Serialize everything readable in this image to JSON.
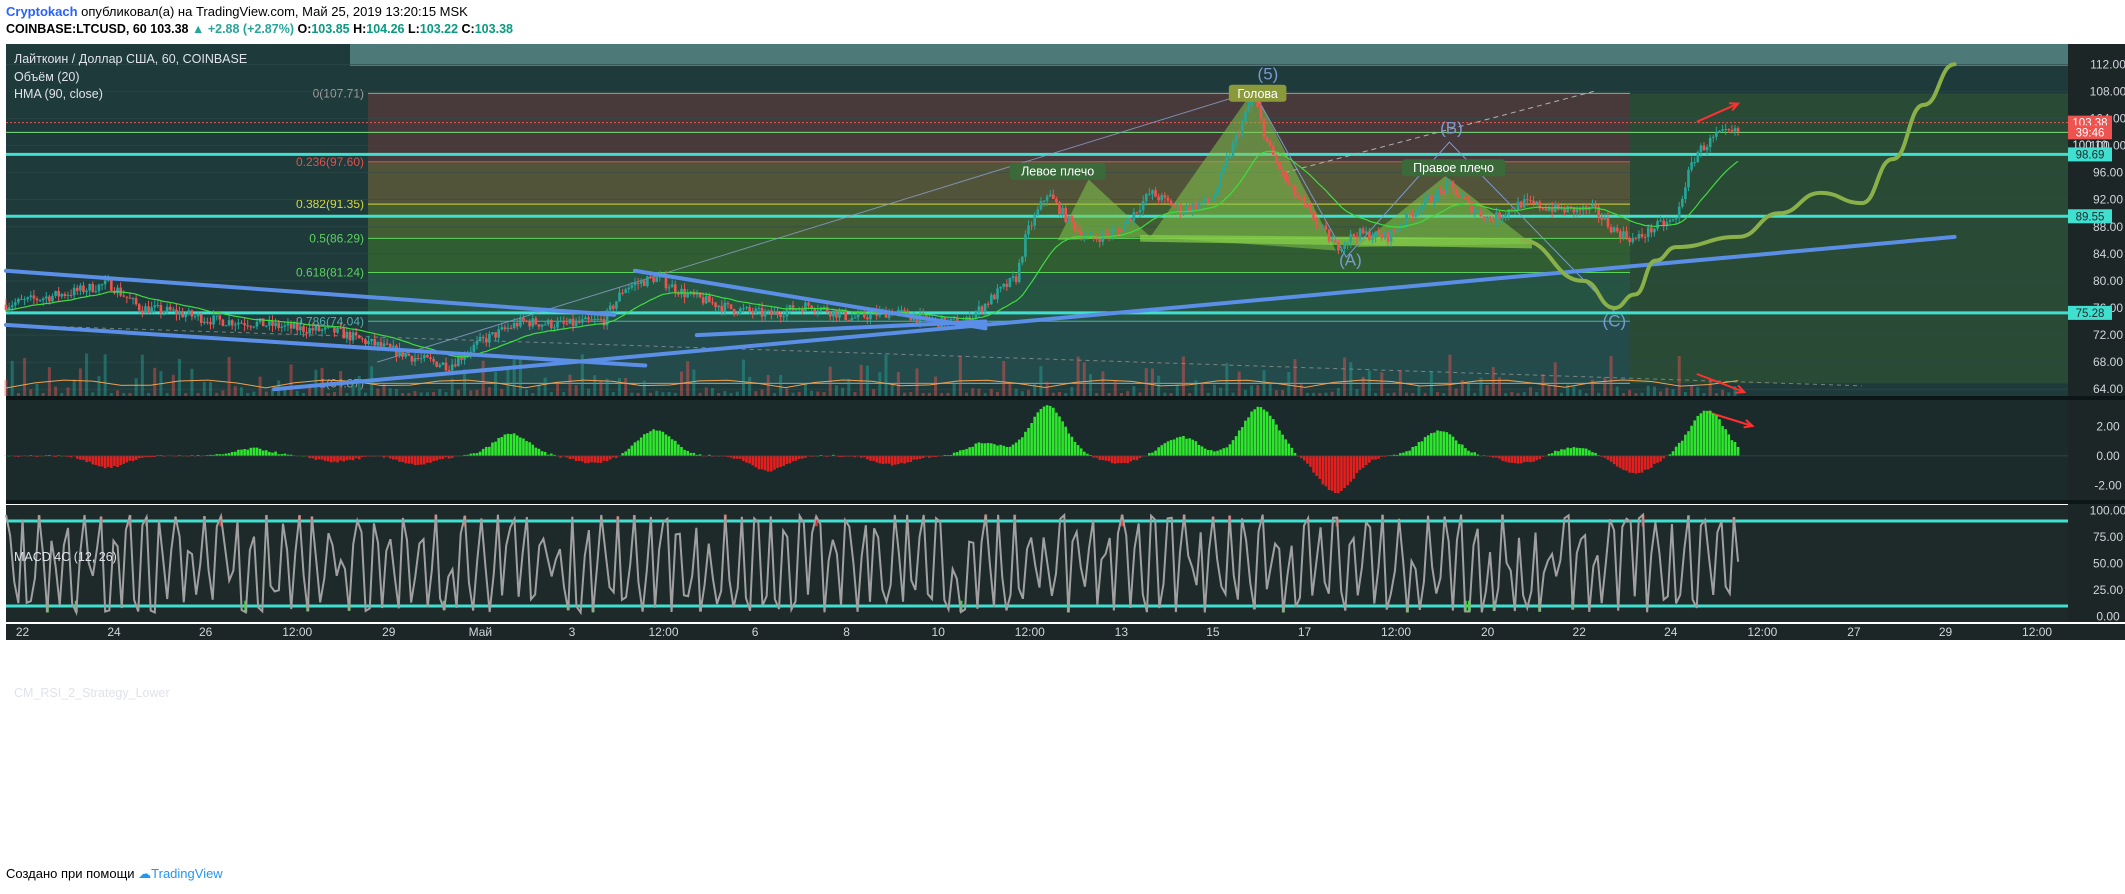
{
  "header": {
    "author": "Cryptokach",
    "published": "опубликовал(а) на TradingView.com, Май 25, 2019 13:20:15 MSK",
    "symbol": "COINBASE:LTCUSD, 60",
    "price": "103.38",
    "change": "▲ +2.88 (+2.87%)",
    "o_label": "O:",
    "o_val": "103.85",
    "h_label": "H:",
    "h_val": "104.26",
    "l_label": "L:",
    "l_val": "103.22",
    "c_label": "C:",
    "c_val": "103.38"
  },
  "legend": {
    "title": "Лайткоин / Доллар США, 60, COINBASE",
    "vol": "Объём (20)",
    "hma": "HMA (90, close)"
  },
  "footer": {
    "created": "Создано при помощи",
    "brand": "TradingView"
  },
  "colors": {
    "bg": "#1e3a3a",
    "fib_green": "#4caf50",
    "cyan": "#40e0d0",
    "trend_blue": "#5b8ee6",
    "olive": "#8ab04a",
    "up": "#26a69a",
    "down": "#ef5350",
    "macd_up": "#2ee62e",
    "macd_down": "#e61e1e",
    "rsi": "#a0a0a0"
  },
  "chart_data": [
    {
      "type": "candlestick",
      "title": "Лайткоин / Доллар США, 60, COINBASE",
      "x_ticks": [
        "22",
        "24",
        "26",
        "12:00",
        "29",
        "Май",
        "3",
        "12:00",
        "6",
        "8",
        "10",
        "12:00",
        "13",
        "15",
        "17",
        "12:00",
        "20",
        "22",
        "24",
        "12:00",
        "27",
        "29",
        "12:00"
      ],
      "y_ticks": [
        64,
        68,
        72,
        76,
        80,
        84,
        88,
        92,
        96,
        100,
        104,
        108,
        112
      ],
      "ylim": [
        63,
        115
      ],
      "price_labels": [
        {
          "value": 103.38,
          "text": "103.38",
          "color": "#ef5350"
        },
        {
          "value": 101.95,
          "text": "39:46",
          "color": "#ef5350"
        },
        {
          "value": 100.1,
          "text": "100.10",
          "color": "#e0e3eb"
        },
        {
          "value": 98.69,
          "text": "98.69",
          "color": "#40e0d0"
        },
        {
          "value": 89.55,
          "text": "89.55",
          "color": "#40e0d0"
        },
        {
          "value": 75.28,
          "text": "75.28",
          "color": "#40e0d0"
        }
      ],
      "fib_levels": [
        {
          "ratio": "0",
          "price": 107.71,
          "label": "0(107.71)"
        },
        {
          "ratio": "0.236",
          "price": 97.6,
          "label": "0.236(97.60)"
        },
        {
          "ratio": "0.382",
          "price": 91.35,
          "label": "0.382(91.35)"
        },
        {
          "ratio": "0.5",
          "price": 86.29,
          "label": "0.5(86.29)"
        },
        {
          "ratio": "0.618",
          "price": 81.24,
          "label": "0.618(81.24)"
        },
        {
          "ratio": "0.786",
          "price": 74.04,
          "label": "0.786(74.04)"
        },
        {
          "ratio": "1",
          "price": 64.87,
          "label": "1(64.87)"
        }
      ],
      "annotations": [
        {
          "text": "(5)",
          "x": 0.612,
          "y": 110.5
        },
        {
          "text": "Голова",
          "x": 0.607,
          "y": 107.5
        },
        {
          "text": "Левое плечо",
          "x": 0.51,
          "y": 96.0
        },
        {
          "text": "Правое плечо",
          "x": 0.702,
          "y": 96.5
        },
        {
          "text": "(B)",
          "x": 0.701,
          "y": 102.5
        },
        {
          "text": "(A)",
          "x": 0.652,
          "y": 83.0
        },
        {
          "text": "(C)",
          "x": 0.78,
          "y": 74.0
        }
      ],
      "price_path": [
        [
          0.0,
          76.5
        ],
        [
          0.03,
          78.2
        ],
        [
          0.05,
          79.6
        ],
        [
          0.065,
          76.0
        ],
        [
          0.08,
          75.5
        ],
        [
          0.1,
          74.2
        ],
        [
          0.12,
          73.8
        ],
        [
          0.14,
          73.0
        ],
        [
          0.16,
          72.5
        ],
        [
          0.18,
          70.5
        ],
        [
          0.2,
          68.5
        ],
        [
          0.215,
          67.5
        ],
        [
          0.23,
          71.0
        ],
        [
          0.25,
          74.0
        ],
        [
          0.27,
          73.5
        ],
        [
          0.29,
          74.2
        ],
        [
          0.3,
          79.0
        ],
        [
          0.315,
          80.5
        ],
        [
          0.33,
          78.0
        ],
        [
          0.35,
          76.0
        ],
        [
          0.37,
          75.0
        ],
        [
          0.39,
          76.5
        ],
        [
          0.41,
          74.5
        ],
        [
          0.43,
          75.5
        ],
        [
          0.45,
          74.0
        ],
        [
          0.465,
          73.8
        ],
        [
          0.48,
          78.0
        ],
        [
          0.49,
          80.5
        ],
        [
          0.495,
          87.0
        ],
        [
          0.505,
          93.0
        ],
        [
          0.515,
          89.0
        ],
        [
          0.525,
          86.0
        ],
        [
          0.54,
          87.5
        ],
        [
          0.555,
          93.0
        ],
        [
          0.57,
          90.5
        ],
        [
          0.585,
          92.0
        ],
        [
          0.595,
          100.0
        ],
        [
          0.605,
          107.5
        ],
        [
          0.612,
          100.0
        ],
        [
          0.622,
          94.0
        ],
        [
          0.632,
          90.0
        ],
        [
          0.645,
          85.0
        ],
        [
          0.655,
          87.0
        ],
        [
          0.67,
          86.5
        ],
        [
          0.685,
          91.0
        ],
        [
          0.7,
          94.0
        ],
        [
          0.71,
          91.0
        ],
        [
          0.72,
          89.0
        ],
        [
          0.735,
          91.5
        ],
        [
          0.755,
          90.5
        ],
        [
          0.77,
          90.5
        ],
        [
          0.78,
          87.5
        ],
        [
          0.79,
          86.0
        ],
        [
          0.8,
          88.0
        ],
        [
          0.81,
          89.0
        ],
        [
          0.815,
          95.0
        ],
        [
          0.82,
          99.0
        ],
        [
          0.83,
          101.5
        ],
        [
          0.84,
          102.0
        ]
      ],
      "projection_path": [
        [
          0.735,
          86.0
        ],
        [
          0.765,
          80.0
        ],
        [
          0.78,
          76.0
        ],
        [
          0.79,
          78.0
        ],
        [
          0.8,
          83.0
        ],
        [
          0.81,
          85.0
        ],
        [
          0.84,
          86.5
        ],
        [
          0.86,
          90.0
        ],
        [
          0.88,
          93.0
        ],
        [
          0.9,
          91.5
        ],
        [
          0.915,
          98.0
        ],
        [
          0.93,
          106.0
        ],
        [
          0.945,
          112.0
        ]
      ],
      "trend_lines": [
        {
          "from": [
            0.0,
            81.5
          ],
          "to": [
            0.295,
            75.0
          ]
        },
        {
          "from": [
            0.0,
            73.5
          ],
          "to": [
            0.31,
            67.5
          ]
        },
        {
          "from": [
            0.13,
            64.0
          ],
          "to": [
            0.945,
            86.5
          ]
        },
        {
          "from": [
            0.305,
            81.5
          ],
          "to": [
            0.475,
            73.0
          ]
        },
        {
          "from": [
            0.335,
            72.0
          ],
          "to": [
            0.475,
            74.0
          ]
        }
      ]
    },
    {
      "type": "histogram",
      "title": "MACD 4C (12, 26)",
      "y_ticks": [
        2.0,
        0.0,
        -2.0
      ],
      "y_tick_labels": [
        "2.00",
        "0.00",
        "-2.00"
      ],
      "ylim": [
        -3.0,
        3.8
      ],
      "peaks": [
        {
          "x": 0.05,
          "v": -0.8
        },
        {
          "x": 0.12,
          "v": 0.5
        },
        {
          "x": 0.16,
          "v": -0.4
        },
        {
          "x": 0.2,
          "v": -0.6
        },
        {
          "x": 0.245,
          "v": 1.5
        },
        {
          "x": 0.285,
          "v": -0.5
        },
        {
          "x": 0.315,
          "v": 1.8
        },
        {
          "x": 0.37,
          "v": -1.0
        },
        {
          "x": 0.43,
          "v": -0.6
        },
        {
          "x": 0.475,
          "v": 0.9
        },
        {
          "x": 0.505,
          "v": 3.4
        },
        {
          "x": 0.54,
          "v": -0.5
        },
        {
          "x": 0.57,
          "v": 1.3
        },
        {
          "x": 0.608,
          "v": 3.3
        },
        {
          "x": 0.645,
          "v": -2.5
        },
        {
          "x": 0.695,
          "v": 1.7
        },
        {
          "x": 0.735,
          "v": -0.5
        },
        {
          "x": 0.76,
          "v": 0.6
        },
        {
          "x": 0.79,
          "v": -1.2
        },
        {
          "x": 0.825,
          "v": 3.1
        }
      ]
    },
    {
      "type": "line",
      "title": "CM_RSI_2_Strategy_Lower",
      "y_ticks": [
        100,
        75,
        50,
        25,
        0
      ],
      "y_tick_labels": [
        "100.00",
        "75.00",
        "50.00",
        "25.00",
        "0.00"
      ],
      "ylim": [
        -5,
        105
      ],
      "bands": [
        90,
        10
      ]
    }
  ]
}
